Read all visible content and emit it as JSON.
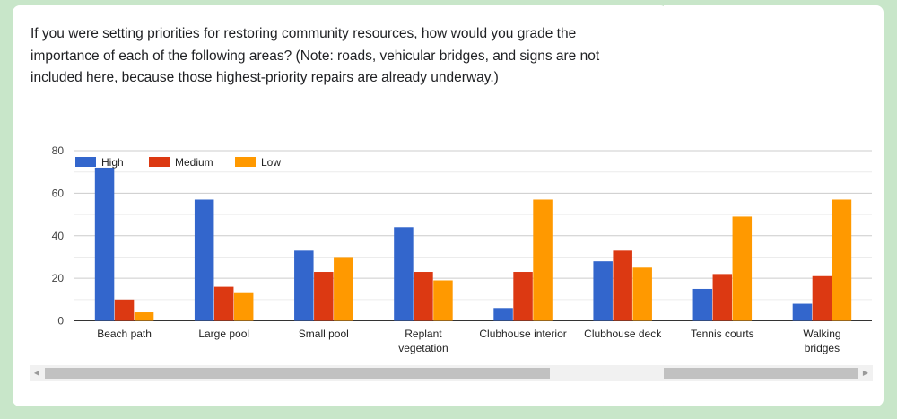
{
  "question": "If you were setting priorities for restoring community resources, how would you grade the importance of each of the following areas? (Note: roads, vehicular bridges, and signs are not included here, because those highest-priority repairs are already underway.)",
  "chart_data": {
    "type": "bar",
    "title": "",
    "xlabel": "",
    "ylabel": "",
    "ylim": [
      0,
      80
    ],
    "yticks": [
      0,
      20,
      40,
      60,
      80
    ],
    "grid": true,
    "legend_position": "top-left",
    "categories": [
      "Beach path",
      "Large pool",
      "Small pool",
      "Replant vegetation",
      "Clubhouse interior",
      "Clubhouse deck",
      "Tennis courts",
      "Walking bridges"
    ],
    "series": [
      {
        "name": "High",
        "color": "#3366cc",
        "values": [
          72,
          57,
          33,
          44,
          6,
          28,
          15,
          8
        ]
      },
      {
        "name": "Medium",
        "color": "#dc3912",
        "values": [
          10,
          16,
          23,
          23,
          23,
          33,
          22,
          21
        ]
      },
      {
        "name": "Low",
        "color": "#ff9900",
        "values": [
          4,
          13,
          30,
          19,
          57,
          25,
          49,
          57
        ]
      }
    ]
  },
  "scrollbar": {
    "left_arrow": "◀",
    "right_arrow": "▶"
  }
}
